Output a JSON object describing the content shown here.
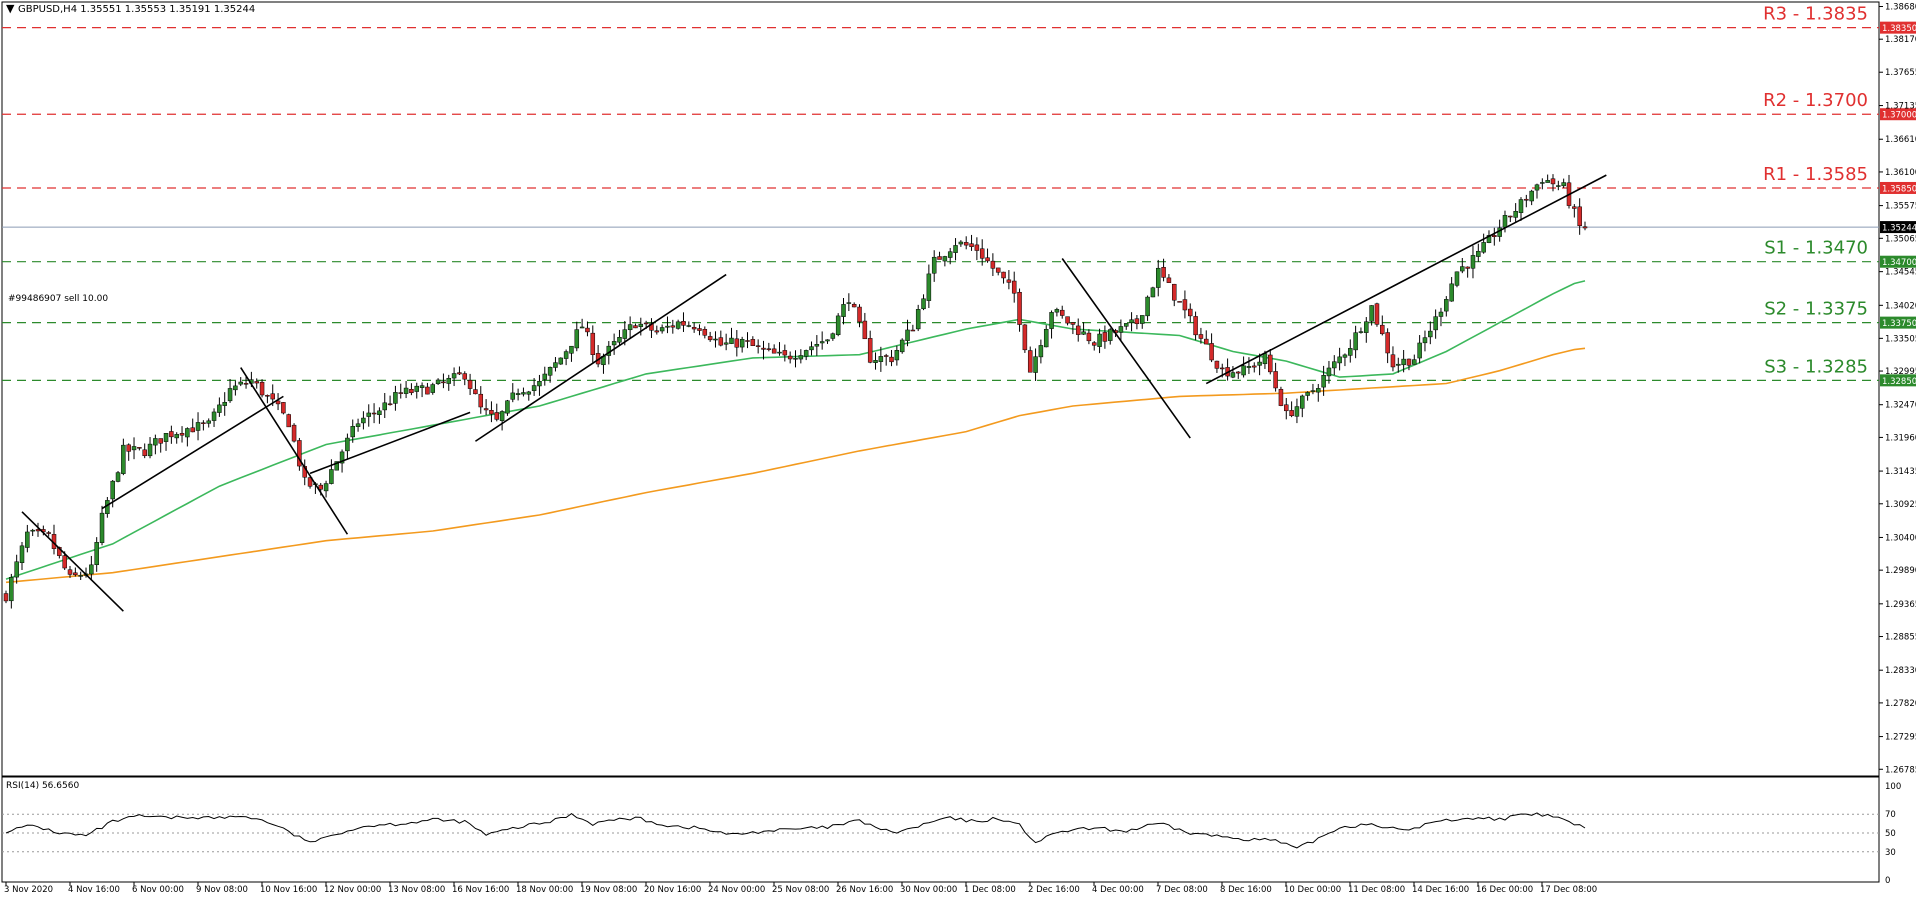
{
  "header": {
    "arrow": "▼",
    "symbol_line": "GBPUSD,H4  1.35551 1.35553 1.35191 1.35244"
  },
  "order_label": "#99486907 sell 10.00",
  "rsi_label": "RSI(14) 56.6560",
  "colors": {
    "bull": "#2c8a2c",
    "bear": "#d42a2a",
    "wick": "#000000",
    "ma_fast": "#3cb85c",
    "ma_slow": "#f39a1e",
    "resistance": "#e03030",
    "support": "#2c8a2c",
    "current": "#8b9bb5",
    "rsi": "#000000"
  },
  "chart_data": [
    {
      "type": "candlestick",
      "title": "GBPUSD,H4",
      "ylim": [
        1.2668,
        1.3875
      ],
      "y_ticks": [
        "1.38680",
        "1.38170",
        "1.37655",
        "1.37135",
        "1.36610",
        "1.36100",
        "1.35575",
        "1.35065",
        "1.34545",
        "1.34020",
        "1.33505",
        "1.32995",
        "1.32470",
        "1.31960",
        "1.31435",
        "1.30925",
        "1.30400",
        "1.29890",
        "1.29365",
        "1.28855",
        "1.28330",
        "1.27820",
        "1.27295",
        "1.26785"
      ],
      "x_ticks": [
        "3 Nov 2020",
        "4 Nov 16:00",
        "6 Nov 00:00",
        "9 Nov 08:00",
        "10 Nov 16:00",
        "12 Nov 00:00",
        "13 Nov 08:00",
        "16 Nov 16:00",
        "18 Nov 00:00",
        "19 Nov 08:00",
        "20 Nov 16:00",
        "24 Nov 00:00",
        "25 Nov 08:00",
        "26 Nov 16:00",
        "30 Nov 00:00",
        "1 Dec 08:00",
        "2 Dec 16:00",
        "4 Dec 00:00",
        "7 Dec 08:00",
        "8 Dec 16:00",
        "10 Dec 00:00",
        "11 Dec 08:00",
        "14 Dec 16:00",
        "16 Dec 00:00",
        "17 Dec 08:00"
      ],
      "current_price": "1.35244",
      "levels": [
        {
          "name": "R3",
          "value": 1.3835,
          "text": "R3 - 1.3835",
          "tag": "1.38350",
          "kind": "resistance"
        },
        {
          "name": "R2",
          "value": 1.37,
          "text": "R2 - 1.3700",
          "tag": "1.37000",
          "kind": "resistance"
        },
        {
          "name": "R1",
          "value": 1.3585,
          "text": "R1 - 1.3585",
          "tag": "1.35850",
          "kind": "resistance"
        },
        {
          "name": "S1",
          "value": 1.347,
          "text": "S1 - 1.3470",
          "tag": "1.34700",
          "kind": "support"
        },
        {
          "name": "S2",
          "value": 1.3375,
          "text": "S2 - 1.3375",
          "tag": "1.33750",
          "kind": "support"
        },
        {
          "name": "S3",
          "value": 1.3285,
          "text": "S3 - 1.3285",
          "tag": "1.32850",
          "kind": "support"
        }
      ],
      "ohlc_anchor_closes": [
        [
          0,
          1.295
        ],
        [
          4,
          1.3045
        ],
        [
          8,
          1.304
        ],
        [
          12,
          1.2975
        ],
        [
          16,
          1.299
        ],
        [
          18,
          1.307
        ],
        [
          22,
          1.3175
        ],
        [
          26,
          1.3175
        ],
        [
          30,
          1.32
        ],
        [
          34,
          1.321
        ],
        [
          38,
          1.3215
        ],
        [
          42,
          1.327
        ],
        [
          46,
          1.3285
        ],
        [
          50,
          1.325
        ],
        [
          53,
          1.322
        ],
        [
          56,
          1.3125
        ],
        [
          59,
          1.3115
        ],
        [
          62,
          1.316
        ],
        [
          66,
          1.322
        ],
        [
          70,
          1.324
        ],
        [
          74,
          1.3265
        ],
        [
          78,
          1.327
        ],
        [
          82,
          1.328
        ],
        [
          86,
          1.3295
        ],
        [
          89,
          1.324
        ],
        [
          92,
          1.322
        ],
        [
          96,
          1.327
        ],
        [
          100,
          1.328
        ],
        [
          104,
          1.332
        ],
        [
          108,
          1.337
        ],
        [
          111,
          1.3315
        ],
        [
          114,
          1.334
        ],
        [
          118,
          1.3375
        ],
        [
          122,
          1.336
        ],
        [
          126,
          1.3375
        ],
        [
          130,
          1.337
        ],
        [
          134,
          1.334
        ],
        [
          138,
          1.3345
        ],
        [
          142,
          1.333
        ],
        [
          146,
          1.332
        ],
        [
          150,
          1.3335
        ],
        [
          154,
          1.335
        ],
        [
          158,
          1.3415
        ],
        [
          162,
          1.332
        ],
        [
          166,
          1.332
        ],
        [
          170,
          1.337
        ],
        [
          174,
          1.347
        ],
        [
          178,
          1.35
        ],
        [
          182,
          1.349
        ],
        [
          186,
          1.345
        ],
        [
          189,
          1.342
        ],
        [
          192,
          1.33
        ],
        [
          196,
          1.3395
        ],
        [
          200,
          1.337
        ],
        [
          204,
          1.3345
        ],
        [
          208,
          1.336
        ],
        [
          212,
          1.3375
        ],
        [
          216,
          1.3455
        ],
        [
          220,
          1.3405
        ],
        [
          224,
          1.335
        ],
        [
          228,
          1.33
        ],
        [
          232,
          1.33
        ],
        [
          236,
          1.332
        ],
        [
          240,
          1.323
        ],
        [
          244,
          1.326
        ],
        [
          248,
          1.33
        ],
        [
          252,
          1.334
        ],
        [
          256,
          1.34
        ],
        [
          260,
          1.331
        ],
        [
          264,
          1.332
        ],
        [
          268,
          1.338
        ],
        [
          272,
          1.3455
        ],
        [
          276,
          1.348
        ],
        [
          280,
          1.3525
        ],
        [
          284,
          1.356
        ],
        [
          288,
          1.36
        ],
        [
          292,
          1.3585
        ],
        [
          295,
          1.3524
        ]
      ],
      "series": [
        {
          "name": "MA fast",
          "values": [
            [
              0,
              1.2975
            ],
            [
              20,
              1.303
            ],
            [
              40,
              1.312
            ],
            [
              60,
              1.3185
            ],
            [
              80,
              1.3215
            ],
            [
              100,
              1.3245
            ],
            [
              120,
              1.3295
            ],
            [
              140,
              1.332
            ],
            [
              160,
              1.3325
            ],
            [
              180,
              1.3365
            ],
            [
              190,
              1.338
            ],
            [
              200,
              1.3365
            ],
            [
              210,
              1.336
            ],
            [
              220,
              1.3355
            ],
            [
              230,
              1.333
            ],
            [
              240,
              1.3315
            ],
            [
              250,
              1.329
            ],
            [
              260,
              1.3295
            ],
            [
              270,
              1.333
            ],
            [
              280,
              1.3375
            ],
            [
              290,
              1.342
            ],
            [
              295,
              1.344
            ]
          ]
        },
        {
          "name": "MA slow",
          "values": [
            [
              0,
              1.297
            ],
            [
              20,
              1.2985
            ],
            [
              40,
              1.301
            ],
            [
              60,
              1.3035
            ],
            [
              80,
              1.305
            ],
            [
              100,
              1.3075
            ],
            [
              120,
              1.311
            ],
            [
              140,
              1.314
            ],
            [
              160,
              1.3175
            ],
            [
              180,
              1.3205
            ],
            [
              190,
              1.323
            ],
            [
              200,
              1.3245
            ],
            [
              220,
              1.326
            ],
            [
              240,
              1.3265
            ],
            [
              260,
              1.3275
            ],
            [
              270,
              1.328
            ],
            [
              280,
              1.33
            ],
            [
              290,
              1.3325
            ],
            [
              295,
              1.3335
            ]
          ]
        }
      ],
      "trendlines": [
        {
          "from": [
            3,
            1.308
          ],
          "to": [
            22,
            1.2925
          ]
        },
        {
          "from": [
            18,
            1.3085
          ],
          "to": [
            52,
            1.326
          ]
        },
        {
          "from": [
            44,
            1.3305
          ],
          "to": [
            64,
            1.3045
          ]
        },
        {
          "from": [
            57,
            1.314
          ],
          "to": [
            87,
            1.3235
          ]
        },
        {
          "from": [
            88,
            1.319
          ],
          "to": [
            135,
            1.345
          ]
        },
        {
          "from": [
            198,
            1.3475
          ],
          "to": [
            222,
            1.3195
          ]
        },
        {
          "from": [
            225,
            1.328
          ],
          "to": [
            300,
            1.3605
          ]
        }
      ]
    },
    {
      "type": "line",
      "title": "RSI(14)",
      "ylim": [
        0,
        100
      ],
      "y_ticks": [
        "100",
        "70",
        "50",
        "30",
        "0"
      ],
      "levels": [
        70,
        50,
        30
      ],
      "values": [
        [
          0,
          52
        ],
        [
          5,
          58
        ],
        [
          10,
          50
        ],
        [
          15,
          47
        ],
        [
          20,
          62
        ],
        [
          25,
          68
        ],
        [
          30,
          66
        ],
        [
          35,
          67
        ],
        [
          40,
          66
        ],
        [
          45,
          68
        ],
        [
          50,
          60
        ],
        [
          55,
          45
        ],
        [
          58,
          40
        ],
        [
          62,
          50
        ],
        [
          68,
          58
        ],
        [
          74,
          60
        ],
        [
          80,
          64
        ],
        [
          86,
          62
        ],
        [
          90,
          48
        ],
        [
          96,
          56
        ],
        [
          102,
          62
        ],
        [
          106,
          70
        ],
        [
          110,
          60
        ],
        [
          114,
          64
        ],
        [
          118,
          66
        ],
        [
          124,
          58
        ],
        [
          130,
          55
        ],
        [
          136,
          48
        ],
        [
          142,
          52
        ],
        [
          148,
          54
        ],
        [
          154,
          56
        ],
        [
          160,
          63
        ],
        [
          166,
          50
        ],
        [
          170,
          55
        ],
        [
          176,
          66
        ],
        [
          182,
          62
        ],
        [
          186,
          66
        ],
        [
          190,
          58
        ],
        [
          193,
          40
        ],
        [
          198,
          52
        ],
        [
          204,
          55
        ],
        [
          210,
          52
        ],
        [
          216,
          60
        ],
        [
          222,
          50
        ],
        [
          228,
          46
        ],
        [
          232,
          44
        ],
        [
          238,
          42
        ],
        [
          242,
          33
        ],
        [
          246,
          44
        ],
        [
          250,
          56
        ],
        [
          256,
          60
        ],
        [
          262,
          52
        ],
        [
          268,
          62
        ],
        [
          274,
          66
        ],
        [
          280,
          65
        ],
        [
          286,
          70
        ],
        [
          290,
          68
        ],
        [
          295,
          57
        ]
      ]
    }
  ]
}
